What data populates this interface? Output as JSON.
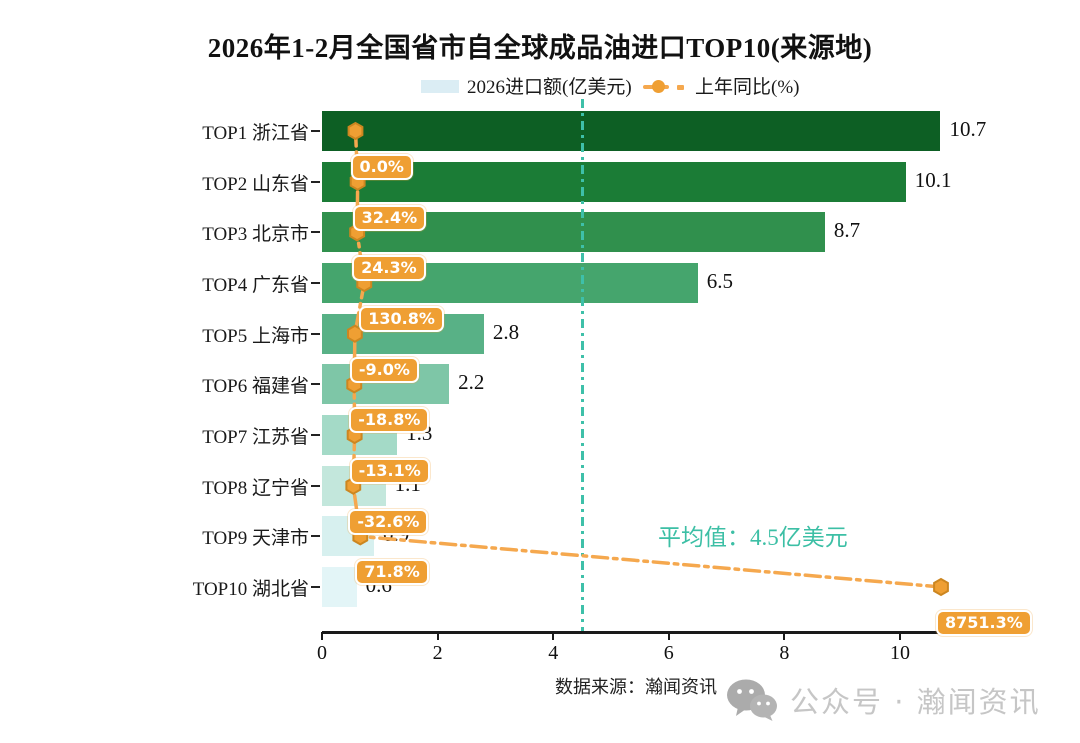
{
  "title": "2026年1-2月全国省市自全球成品油进口TOP10(来源地)",
  "legend": {
    "bar_label": "2026进口额(亿美元)",
    "line_label": "上年同比(%)"
  },
  "chart_data": {
    "type": "bar",
    "orientation": "horizontal",
    "title": "2026年1-2月全国省市自全球成品油进口TOP10(来源地)",
    "categories": [
      "TOP1 浙江省",
      "TOP2 山东省",
      "TOP3 北京市",
      "TOP4 广东省",
      "TOP5 上海市",
      "TOP6 福建省",
      "TOP7 江苏省",
      "TOP8 辽宁省",
      "TOP9 天津市",
      "TOP10 湖北省"
    ],
    "series": [
      {
        "name": "2026进口额(亿美元)",
        "type": "bar",
        "values": [
          10.7,
          10.1,
          8.7,
          6.5,
          2.8,
          2.2,
          1.3,
          1.1,
          0.9,
          0.6
        ]
      },
      {
        "name": "上年同比(%)",
        "type": "line",
        "values": [
          0.0,
          32.4,
          24.3,
          130.8,
          -9.0,
          -18.8,
          -13.1,
          -32.6,
          71.8,
          8751.3
        ]
      }
    ],
    "bar_value_labels": [
      "10.7",
      "10.1",
      "8.7",
      "6.5",
      "2.8",
      "2.2",
      "1.3",
      "1.1",
      "0.9",
      "0.6"
    ],
    "yoy_value_labels": [
      "0.0%",
      "32.4%",
      "24.3%",
      "130.8%",
      "-9.0%",
      "-18.8%",
      "-13.1%",
      "-32.6%",
      "71.8%",
      "8751.3%"
    ],
    "x_ticks": [
      "0",
      "2",
      "4",
      "6",
      "8",
      "10"
    ],
    "x_tick_values": [
      0,
      2,
      4,
      6,
      8,
      10
    ],
    "xlim": [
      0,
      11.25
    ],
    "grid": false,
    "legend_position": "top",
    "average": {
      "value": 4.5,
      "label": "平均值：4.5亿美元"
    },
    "colors": {
      "bars": [
        "#0d5f24",
        "#1b7c36",
        "#30904d",
        "#45a56d",
        "#58b186",
        "#7ec6a7",
        "#a4dac7",
        "#c3e7dc",
        "#d7f0ef",
        "#e3f5f7"
      ],
      "legend_swatch": "#dbedf4",
      "yoy_line": "#f5a84e",
      "yoy_marker_fill": "#ef9f33",
      "yoy_marker_stroke": "#cc8620",
      "yoy_label_bg": "#ef9f33",
      "average_teal": "#3cbfa5",
      "axis": "#1a1a1a"
    }
  },
  "footer": {
    "source": "数据来源：瀚闻资讯"
  },
  "watermark": {
    "icon": "wechat-icon",
    "text": "公众号 · 瀚闻资讯"
  }
}
